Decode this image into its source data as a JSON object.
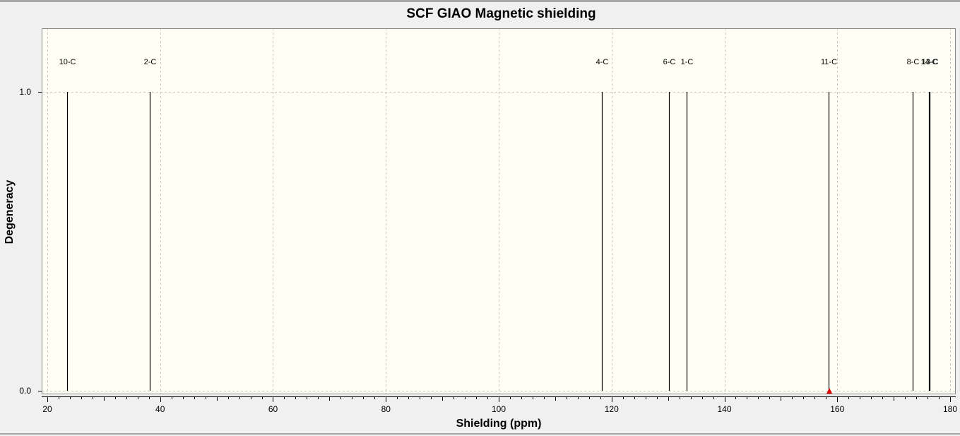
{
  "chart_data": {
    "type": "bar",
    "title": "SCF GIAO Magnetic shielding",
    "xlabel": "Shielding (ppm)",
    "ylabel": "Degeneracy",
    "xlim": [
      19,
      181
    ],
    "ylim": [
      -0.01,
      1.22
    ],
    "x_ticks": [
      20,
      40,
      60,
      80,
      100,
      120,
      140,
      160,
      180
    ],
    "y_ticks": [
      "0.0",
      "1.0"
    ],
    "grid": true,
    "series": [
      {
        "peaks": [
          {
            "label": "10-C",
            "x": 23.5,
            "y": 1.0
          },
          {
            "label": "2-C",
            "x": 38.2,
            "y": 1.0
          },
          {
            "label": "4-C",
            "x": 118.3,
            "y": 1.0
          },
          {
            "label": "6-C",
            "x": 130.2,
            "y": 1.0
          },
          {
            "label": "1-C",
            "x": 133.3,
            "y": 1.0
          },
          {
            "label": "11-C",
            "x": 158.5,
            "y": 1.0
          },
          {
            "label": "8-C",
            "x": 173.4,
            "y": 1.0
          },
          {
            "label": "14-C",
            "x": 176.3,
            "y": 1.0
          },
          {
            "label": "13-C",
            "x": 176.4,
            "y": 1.0
          }
        ]
      }
    ],
    "marker": {
      "x": 158.6,
      "y": 0.0,
      "color": "#e00000"
    },
    "colors": {
      "plot_bg": "#fffff5",
      "line": "#000000",
      "grid": "#c8c8c8"
    }
  }
}
